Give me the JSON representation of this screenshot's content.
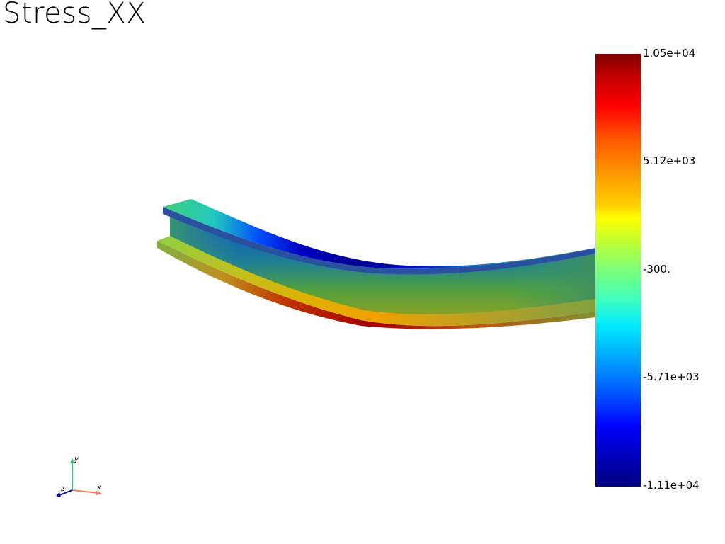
{
  "plot": {
    "title": "Stress_XX"
  },
  "colorbar": {
    "labels": [
      "1.05e+04",
      "5.12e+03",
      "-300.",
      "-5.71e+03",
      "-1.11e+04"
    ]
  },
  "axes_widget": {
    "x_label": "x",
    "y_label": "y",
    "z_label": "z",
    "x_color": "#f08060",
    "y_color": "#40c080",
    "z_color": "#0000c0"
  }
}
